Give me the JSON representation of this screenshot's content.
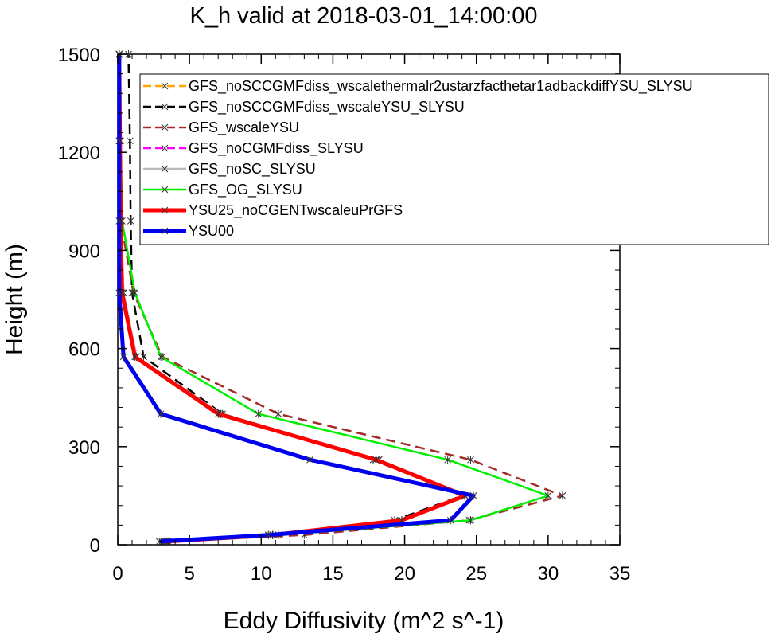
{
  "chart_data": {
    "type": "line",
    "title": "K_h valid at 2018-03-01_14:00:00",
    "xlabel": "Eddy Diffusivity (m^2 s^-1)",
    "ylabel": "Height (m)",
    "xlim": [
      0,
      35
    ],
    "ylim": [
      0,
      1500
    ],
    "xticks": [
      0,
      5,
      10,
      15,
      20,
      25,
      30,
      35
    ],
    "yticks": [
      0,
      300,
      600,
      900,
      1200,
      1500
    ],
    "legend_position": "top-right",
    "heights": [
      10,
      30,
      75,
      150,
      260,
      400,
      575,
      770,
      990,
      1235,
      1500
    ],
    "series": [
      {
        "name": "GFS_noSCCGMFdiss_wscalethermalr2ustarzfacthetar1adbackdiffYSU_SLYSU",
        "color": "#ffa500",
        "dash": "dash",
        "width": 2.5,
        "x": [
          3.5,
          10.8,
          19.8,
          24.2,
          18.2,
          7.2,
          1.3,
          0.4,
          0.2,
          0.15,
          0.1
        ]
      },
      {
        "name": "GFS_noSCCGMFdiss_wscaleYSU_SLYSU",
        "color": "#000000",
        "dash": "dash",
        "width": 2.5,
        "x": [
          3.3,
          10.5,
          19.3,
          24.0,
          17.8,
          7.3,
          1.8,
          1.0,
          0.9,
          0.85,
          0.75
        ]
      },
      {
        "name": "GFS_wscaleYSU",
        "color": "#a52a2a",
        "dash": "dash",
        "width": 2.5,
        "x": [
          3.5,
          13.0,
          24.5,
          31.0,
          24.6,
          11.2,
          3.1,
          1.1,
          0.2,
          0.15,
          0.1
        ]
      },
      {
        "name": "GFS_noCGMFdiss_SLYSU",
        "color": "#ff00ff",
        "dash": "dash",
        "width": 2.5,
        "x": [
          3.5,
          10.8,
          19.8,
          24.2,
          18.2,
          7.2,
          1.3,
          0.4,
          0.2,
          0.15,
          0.1
        ]
      },
      {
        "name": "GFS_noSC_SLYSU",
        "color": "#bbbbbb",
        "dash": "solid",
        "width": 2.5,
        "x": [
          3.5,
          10.8,
          19.8,
          24.2,
          18.2,
          7.2,
          1.3,
          0.4,
          0.2,
          0.15,
          0.1
        ]
      },
      {
        "name": "GFS_OG_SLYSU",
        "color": "#00ee00",
        "dash": "solid",
        "width": 2.5,
        "x": [
          3.2,
          11.2,
          24.6,
          30.0,
          23.0,
          9.8,
          3.0,
          1.2,
          0.3,
          0.2,
          0.1
        ]
      },
      {
        "name": "YSU25_noCGENTwscaleuPrGFS",
        "color": "#ff0000",
        "dash": "solid",
        "width": 5,
        "x": [
          3.4,
          10.8,
          19.8,
          24.2,
          18.0,
          7.0,
          1.2,
          0.3,
          0.2,
          0.15,
          0.1
        ]
      },
      {
        "name": "YSU00",
        "color": "#0000ee",
        "dash": "solid",
        "width": 5,
        "x": [
          2.9,
          10.5,
          23.2,
          24.8,
          13.4,
          3.0,
          0.4,
          0.1,
          0.1,
          0.1,
          0.1
        ]
      }
    ]
  }
}
